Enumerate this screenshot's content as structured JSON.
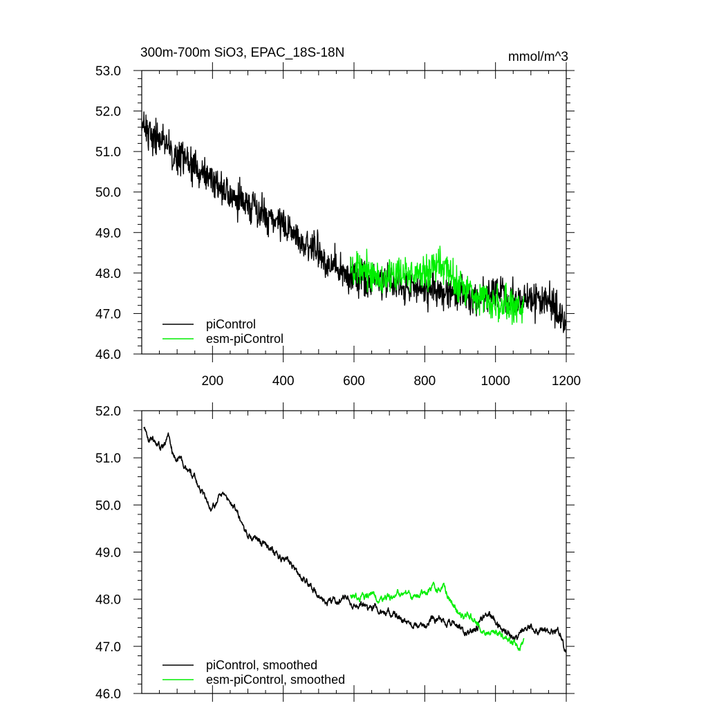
{
  "chart_data": [
    {
      "type": "line",
      "title": "300m-700m SiO3, EPAC_18S-18N",
      "units": "mmol/m^3",
      "xlim": [
        0,
        1200
      ],
      "ylim": [
        46.0,
        53.0
      ],
      "x_ticks": [
        200,
        400,
        600,
        800,
        1000,
        1200
      ],
      "x_tick_labels": [
        "200",
        "400",
        "600",
        "800",
        "1000",
        "1200"
      ],
      "y_ticks": [
        46.0,
        47.0,
        48.0,
        49.0,
        50.0,
        51.0,
        52.0,
        53.0
      ],
      "y_tick_labels": [
        "46.0",
        "47.0",
        "48.0",
        "49.0",
        "50.0",
        "51.0",
        "52.0",
        "53.0"
      ],
      "legend_position": "bottom-left",
      "series": [
        {
          "name": "piControl",
          "color": "#000000",
          "x": [
            0,
            50,
            100,
            150,
            200,
            250,
            300,
            350,
            400,
            450,
            500,
            550,
            600,
            650,
            700,
            750,
            800,
            850,
            900,
            950,
            1000,
            1050,
            1100,
            1150,
            1200
          ],
          "values": [
            51.7,
            51.3,
            50.9,
            50.6,
            50.3,
            49.9,
            49.7,
            49.4,
            49.2,
            48.8,
            48.5,
            48.1,
            47.9,
            47.8,
            47.75,
            47.65,
            47.6,
            47.55,
            47.45,
            47.35,
            47.6,
            47.3,
            47.35,
            47.3,
            46.7
          ],
          "noise": 0.35
        },
        {
          "name": "esm-piControl",
          "color": "#00ee00",
          "x": [
            590,
            640,
            690,
            740,
            790,
            840,
            870,
            900,
            940,
            980,
            1020,
            1060,
            1080
          ],
          "values": [
            48.0,
            48.05,
            47.85,
            48.0,
            48.0,
            48.2,
            48.0,
            47.7,
            47.5,
            47.35,
            47.2,
            47.15,
            47.2
          ],
          "noise": 0.35
        }
      ]
    },
    {
      "type": "line",
      "title": "",
      "xlim": [
        0,
        1200
      ],
      "ylim": [
        46.0,
        52.0
      ],
      "x_ticks": [
        200,
        400,
        600,
        800,
        1000,
        1200
      ],
      "y_ticks": [
        46.0,
        47.0,
        48.0,
        49.0,
        50.0,
        51.0,
        52.0
      ],
      "y_tick_labels": [
        "46.0",
        "47.0",
        "48.0",
        "49.0",
        "50.0",
        "51.0",
        "52.0"
      ],
      "legend_position": "bottom-left",
      "series": [
        {
          "name": "piControl, smoothed",
          "color": "#000000",
          "x": [
            5,
            20,
            40,
            55,
            75,
            90,
            110,
            130,
            150,
            160,
            180,
            200,
            220,
            240,
            260,
            280,
            300,
            320,
            340,
            360,
            380,
            400,
            420,
            440,
            460,
            480,
            500,
            520,
            540,
            560,
            580,
            600,
            620,
            640,
            660,
            680,
            700,
            720,
            740,
            760,
            780,
            800,
            820,
            840,
            860,
            880,
            900,
            920,
            940,
            960,
            980,
            1000,
            1020,
            1040,
            1060,
            1080,
            1100,
            1120,
            1140,
            1160,
            1180,
            1195,
            1200
          ],
          "values": [
            51.65,
            51.4,
            51.35,
            51.2,
            51.5,
            51.05,
            50.95,
            50.75,
            50.6,
            50.4,
            50.15,
            49.9,
            50.2,
            50.15,
            49.95,
            49.7,
            49.35,
            49.3,
            49.2,
            49.1,
            48.95,
            48.85,
            48.8,
            48.55,
            48.4,
            48.25,
            48.05,
            47.85,
            48.0,
            47.95,
            48.05,
            47.85,
            47.9,
            47.75,
            47.85,
            47.7,
            47.7,
            47.65,
            47.55,
            47.5,
            47.45,
            47.45,
            47.6,
            47.6,
            47.5,
            47.55,
            47.4,
            47.3,
            47.3,
            47.55,
            47.7,
            47.5,
            47.35,
            47.25,
            47.15,
            47.35,
            47.4,
            47.3,
            47.4,
            47.3,
            47.35,
            46.9,
            46.9
          ],
          "noise": 0.07
        },
        {
          "name": "esm-piControl, smoothed",
          "color": "#00ee00",
          "x": [
            590,
            610,
            630,
            650,
            670,
            690,
            710,
            730,
            750,
            770,
            790,
            810,
            825,
            840,
            855,
            870,
            890,
            910,
            930,
            950,
            970,
            990,
            1010,
            1030,
            1050,
            1065,
            1080
          ],
          "values": [
            48.1,
            48.05,
            48.0,
            48.1,
            47.95,
            48.0,
            48.05,
            48.15,
            48.1,
            48.05,
            48.1,
            48.15,
            48.25,
            48.2,
            48.3,
            48.0,
            47.75,
            47.65,
            47.6,
            47.45,
            47.35,
            47.3,
            47.25,
            47.15,
            47.1,
            47.0,
            47.1
          ],
          "noise": 0.07
        }
      ]
    }
  ]
}
